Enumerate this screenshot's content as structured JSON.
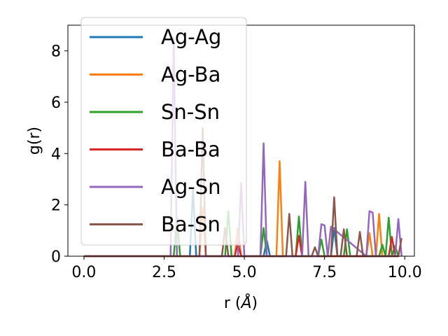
{
  "chart_data": {
    "type": "line",
    "title": "",
    "xlabel": "r (",
    "xlabel_unit": "Å",
    "xlabel_close": ")",
    "ylabel": "g(r)",
    "xlim": [
      -0.5,
      10.3
    ],
    "ylim": [
      0,
      9
    ],
    "xticks": [
      0.0,
      2.5,
      5.0,
      7.5,
      10.0
    ],
    "xtick_labels": [
      "0.0",
      "2.5",
      "5.0",
      "7.5",
      "10.0"
    ],
    "yticks": [
      0,
      2,
      4,
      6,
      8
    ],
    "ytick_labels": [
      "0",
      "2",
      "4",
      "6",
      "8"
    ],
    "grid": false,
    "legend_position": "upper-left",
    "series": [
      {
        "name": "Ag-Ag",
        "color": "#1f77b4",
        "x": [
          0,
          3.3,
          3.4,
          3.5,
          5.6,
          5.7,
          5.8,
          7.7,
          7.8,
          7.9,
          9.8
        ],
        "y": [
          0,
          0,
          2.6,
          0,
          0,
          0.6,
          0,
          0,
          1.1,
          0,
          0
        ]
      },
      {
        "name": "Ag-Ba",
        "color": "#ff7f0e",
        "x": [
          0,
          3.6,
          3.7,
          3.8,
          4.7,
          4.8,
          4.9,
          6.0,
          6.1,
          6.2,
          8.8,
          8.9,
          9.0,
          9.1,
          9.2,
          9.3,
          9.8
        ],
        "y": [
          0,
          0,
          1.9,
          0,
          0,
          1.1,
          0,
          0,
          3.7,
          0,
          0,
          0.9,
          0,
          0,
          1.65,
          0,
          0
        ]
      },
      {
        "name": "Sn-Sn",
        "color": "#2ca02c",
        "x": [
          0,
          2.8,
          2.9,
          3.0,
          4.4,
          4.5,
          4.6,
          5.5,
          5.6,
          5.7,
          6.6,
          6.7,
          6.8,
          7.3,
          7.4,
          7.5,
          8.1,
          8.2,
          8.3,
          9.2,
          9.3,
          9.4,
          9.5,
          9.6,
          9.7,
          9.8
        ],
        "y": [
          0,
          0,
          1.5,
          0,
          0,
          1.75,
          0,
          0,
          1.1,
          0,
          0,
          1.55,
          0,
          0,
          0.65,
          0,
          0,
          1.05,
          0,
          0,
          0.45,
          0,
          1.5,
          0,
          0.4,
          0
        ]
      },
      {
        "name": "Ba-Ba",
        "color": "#d62728",
        "x": [
          0,
          4.7,
          4.8,
          4.9,
          6.6,
          6.7,
          6.8,
          9.5,
          9.6,
          9.7,
          9.8
        ],
        "y": [
          0,
          0,
          0.5,
          0,
          0,
          0.8,
          0,
          0,
          0.75,
          0,
          0
        ]
      },
      {
        "name": "Ag-Sn",
        "color": "#9467bd",
        "x": [
          0,
          2.7,
          2.8,
          2.9,
          4.8,
          4.9,
          5.0,
          5.5,
          5.6,
          5.7,
          6.8,
          6.9,
          7.0,
          7.3,
          7.4,
          7.5,
          7.6,
          7.7,
          8.8,
          8.9,
          9.0,
          9.1,
          9.7,
          9.8,
          9.9
        ],
        "y": [
          0,
          0,
          8.5,
          0,
          0,
          2.85,
          0,
          0,
          4.4,
          0,
          0,
          2.9,
          0,
          0,
          1.25,
          1.2,
          0,
          1.15,
          0,
          1.75,
          1.7,
          0,
          0,
          1.45,
          0
        ]
      },
      {
        "name": "Ba-Sn",
        "color": "#8c564b",
        "x": [
          0,
          3.6,
          3.7,
          3.8,
          4.3,
          4.4,
          4.5,
          6.3,
          6.4,
          6.5,
          7.1,
          7.2,
          7.3,
          7.7,
          7.8,
          7.9,
          8.0,
          8.1,
          8.2,
          8.5,
          8.6,
          8.7,
          8.8,
          9.8,
          9.9
        ],
        "y": [
          0,
          0,
          5.0,
          0,
          0,
          1.1,
          0,
          0,
          1.65,
          0,
          0,
          0.35,
          0,
          0,
          2.3,
          0,
          0,
          1.05,
          0,
          0,
          0.95,
          0,
          0,
          0,
          0.7
        ]
      }
    ]
  }
}
